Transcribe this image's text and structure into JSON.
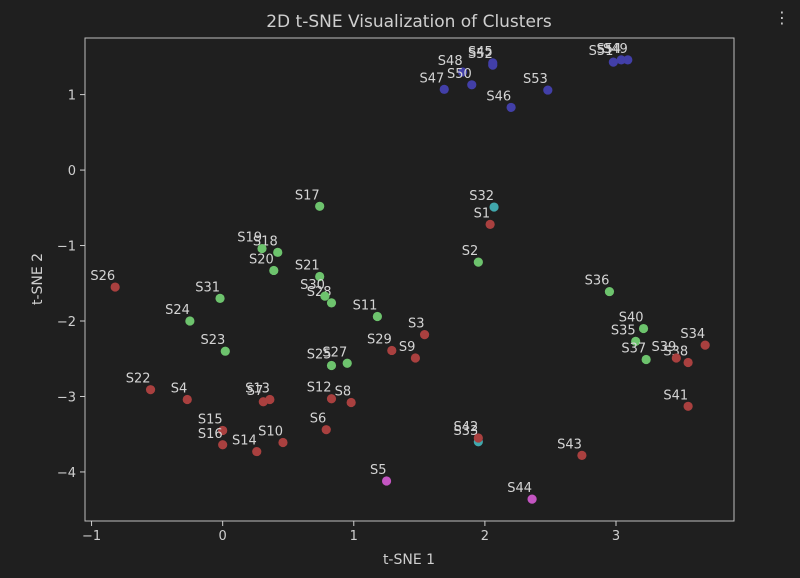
{
  "toolbar": {
    "more_icon": "more-vertical-icon",
    "more_glyph": "⋮"
  },
  "chart_data": {
    "type": "scatter",
    "title": "2D t-SNE Visualization of Clusters",
    "xlabel": "t-SNE 1",
    "ylabel": "t-SNE 2",
    "xlim": [
      -1.05,
      3.9
    ],
    "ylim": [
      -4.65,
      1.75
    ],
    "xticks": [
      -1,
      0,
      1,
      2,
      3
    ],
    "yticks": [
      -4,
      -3,
      -2,
      -1,
      0,
      1
    ],
    "xtick_labels": [
      "−1",
      "0",
      "1",
      "2",
      "3"
    ],
    "ytick_labels": [
      "−4",
      "−3",
      "−2",
      "−1",
      "0",
      "1"
    ],
    "grid": false,
    "cluster_colors": {
      "red": "#a9403f",
      "green": "#6dc36d",
      "blue": "#423fa8",
      "teal": "#41a8ad",
      "magenta": "#c455c2"
    },
    "points": [
      {
        "label": "S1",
        "x": 2.04,
        "y": -0.72,
        "cluster": "red"
      },
      {
        "label": "S2",
        "x": 1.95,
        "y": -1.22,
        "cluster": "green"
      },
      {
        "label": "S3",
        "x": 1.54,
        "y": -2.18,
        "cluster": "red"
      },
      {
        "label": "S4",
        "x": -0.27,
        "y": -3.04,
        "cluster": "red"
      },
      {
        "label": "S5",
        "x": 1.25,
        "y": -4.12,
        "cluster": "magenta"
      },
      {
        "label": "S6",
        "x": 0.79,
        "y": -3.44,
        "cluster": "red"
      },
      {
        "label": "S7",
        "x": 0.31,
        "y": -3.07,
        "cluster": "red"
      },
      {
        "label": "S8",
        "x": 0.98,
        "y": -3.08,
        "cluster": "red"
      },
      {
        "label": "S9",
        "x": 1.47,
        "y": -2.49,
        "cluster": "red"
      },
      {
        "label": "S10",
        "x": 0.46,
        "y": -3.61,
        "cluster": "red"
      },
      {
        "label": "S11",
        "x": 1.18,
        "y": -1.94,
        "cluster": "green"
      },
      {
        "label": "S12",
        "x": 0.83,
        "y": -3.03,
        "cluster": "red"
      },
      {
        "label": "S13",
        "x": 0.36,
        "y": -3.04,
        "cluster": "red"
      },
      {
        "label": "S14",
        "x": 0.26,
        "y": -3.73,
        "cluster": "red"
      },
      {
        "label": "S15",
        "x": 0.0,
        "y": -3.45,
        "cluster": "red"
      },
      {
        "label": "S16",
        "x": 0.0,
        "y": -3.64,
        "cluster": "red"
      },
      {
        "label": "S17",
        "x": 0.74,
        "y": -0.48,
        "cluster": "green"
      },
      {
        "label": "S18",
        "x": 0.42,
        "y": -1.09,
        "cluster": "green"
      },
      {
        "label": "S19",
        "x": 0.3,
        "y": -1.04,
        "cluster": "green"
      },
      {
        "label": "S20",
        "x": 0.39,
        "y": -1.33,
        "cluster": "green"
      },
      {
        "label": "S21",
        "x": 0.74,
        "y": -1.41,
        "cluster": "green"
      },
      {
        "label": "S22",
        "x": -0.55,
        "y": -2.91,
        "cluster": "red"
      },
      {
        "label": "S23",
        "x": 0.02,
        "y": -2.4,
        "cluster": "green"
      },
      {
        "label": "S24",
        "x": -0.25,
        "y": -2.0,
        "cluster": "green"
      },
      {
        "label": "S25",
        "x": 0.83,
        "y": -2.59,
        "cluster": "green"
      },
      {
        "label": "S26",
        "x": -0.82,
        "y": -1.55,
        "cluster": "red"
      },
      {
        "label": "S27",
        "x": 0.95,
        "y": -2.56,
        "cluster": "green"
      },
      {
        "label": "S28",
        "x": 0.83,
        "y": -1.76,
        "cluster": "green"
      },
      {
        "label": "S29",
        "x": 1.29,
        "y": -2.39,
        "cluster": "red"
      },
      {
        "label": "S30",
        "x": 0.78,
        "y": -1.67,
        "cluster": "green"
      },
      {
        "label": "S31",
        "x": -0.02,
        "y": -1.7,
        "cluster": "green"
      },
      {
        "label": "S32",
        "x": 2.07,
        "y": -0.49,
        "cluster": "teal"
      },
      {
        "label": "S33",
        "x": 1.95,
        "y": -3.6,
        "cluster": "teal"
      },
      {
        "label": "S34",
        "x": 3.68,
        "y": -2.32,
        "cluster": "red"
      },
      {
        "label": "S35",
        "x": 3.15,
        "y": -2.27,
        "cluster": "green"
      },
      {
        "label": "S36",
        "x": 2.95,
        "y": -1.61,
        "cluster": "green"
      },
      {
        "label": "S37",
        "x": 3.23,
        "y": -2.51,
        "cluster": "green"
      },
      {
        "label": "S38",
        "x": 3.55,
        "y": -2.55,
        "cluster": "red"
      },
      {
        "label": "S39",
        "x": 3.46,
        "y": -2.49,
        "cluster": "red"
      },
      {
        "label": "S40",
        "x": 3.21,
        "y": -2.1,
        "cluster": "green"
      },
      {
        "label": "S41",
        "x": 3.55,
        "y": -3.13,
        "cluster": "red"
      },
      {
        "label": "S42",
        "x": 1.95,
        "y": -3.55,
        "cluster": "red"
      },
      {
        "label": "S43",
        "x": 2.74,
        "y": -3.78,
        "cluster": "red"
      },
      {
        "label": "S44",
        "x": 2.36,
        "y": -4.36,
        "cluster": "magenta"
      },
      {
        "label": "S45",
        "x": 2.06,
        "y": 1.42,
        "cluster": "blue"
      },
      {
        "label": "S46",
        "x": 2.2,
        "y": 0.83,
        "cluster": "blue"
      },
      {
        "label": "S47",
        "x": 1.69,
        "y": 1.07,
        "cluster": "blue"
      },
      {
        "label": "S48",
        "x": 1.83,
        "y": 1.3,
        "cluster": "blue"
      },
      {
        "label": "S49",
        "x": 3.09,
        "y": 1.46,
        "cluster": "blue"
      },
      {
        "label": "S50",
        "x": 1.9,
        "y": 1.13,
        "cluster": "blue"
      },
      {
        "label": "S51",
        "x": 2.98,
        "y": 1.43,
        "cluster": "blue"
      },
      {
        "label": "S52",
        "x": 2.06,
        "y": 1.39,
        "cluster": "blue"
      },
      {
        "label": "S53",
        "x": 2.48,
        "y": 1.06,
        "cluster": "blue"
      },
      {
        "label": "S54",
        "x": 3.04,
        "y": 1.46,
        "cluster": "blue"
      }
    ]
  }
}
